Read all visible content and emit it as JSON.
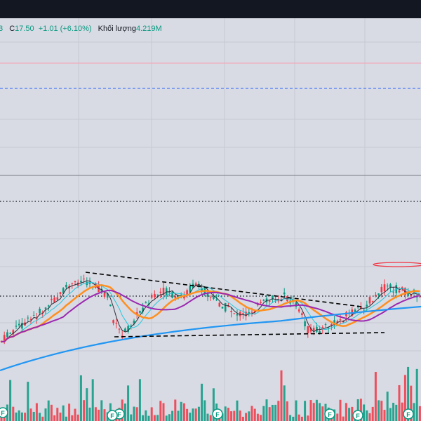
{
  "legend": {
    "prev_fragment": "3",
    "close_label": "C",
    "close_value": "17.50",
    "change": "+1.01 (+6.10%)",
    "volume_label": "Khối lượng",
    "volume_value": "4.219M"
  },
  "colors": {
    "background": "#d8dbe3",
    "topbar": "#131722",
    "up": "#089981",
    "down": "#f23645",
    "ma_fast": "#2a2e39",
    "ma_cyan": "#26c6da",
    "ma_orange": "#ff8f1f",
    "ma_purple": "#9c27b0",
    "ma_blue": "#2196f3",
    "trendline": "#000000",
    "level_blue_dashed": "#2962ff",
    "level_dotted": "#2a2e39",
    "level_pink": "#f7a1b4",
    "highlight_ellipse": "#f23645"
  },
  "markers": {
    "label": "F",
    "count": 7
  }
}
